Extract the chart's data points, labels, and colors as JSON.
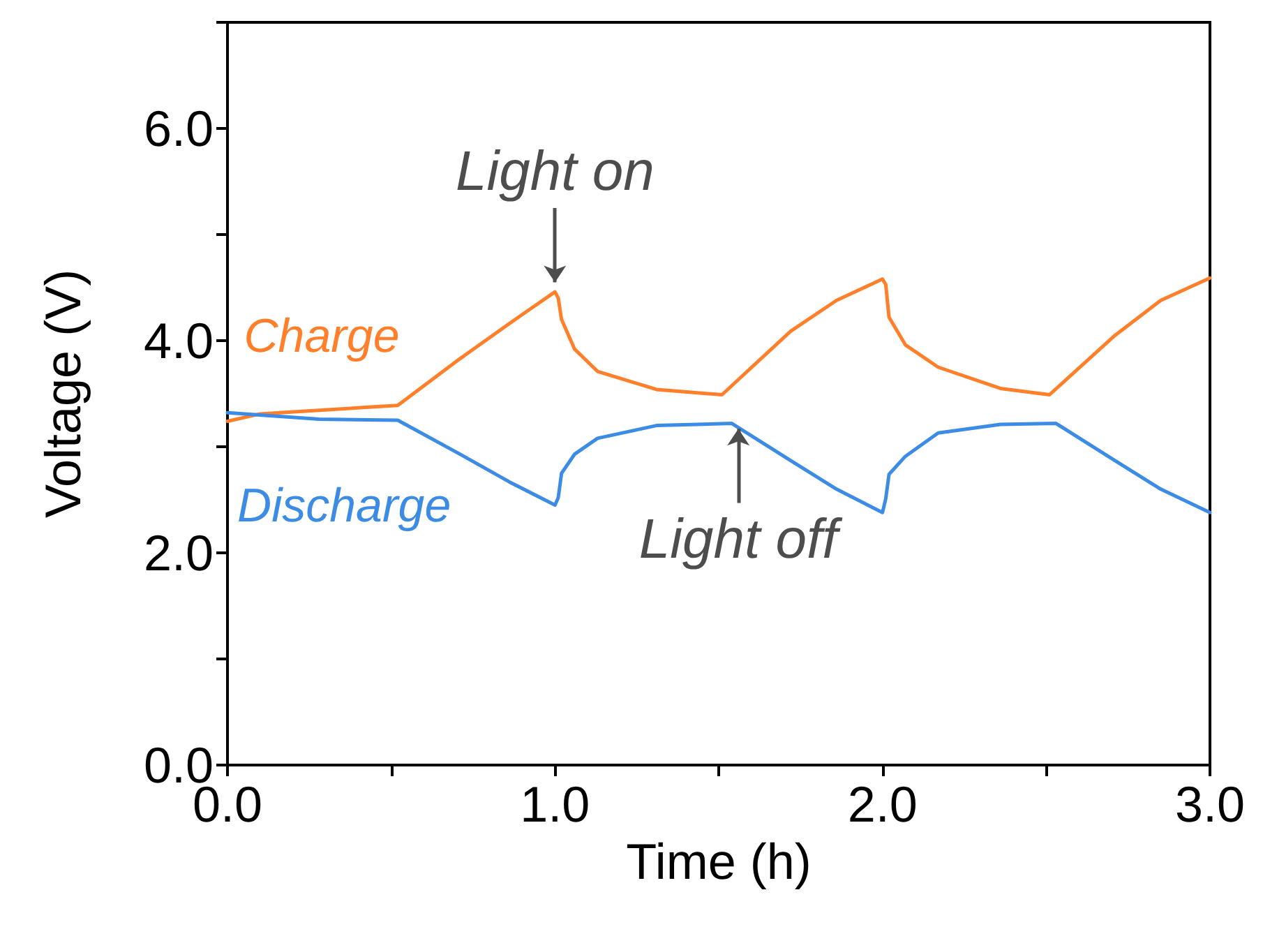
{
  "chart_data": {
    "type": "line",
    "xlabel": "Time (h)",
    "ylabel": "Voltage (V)",
    "xlim": [
      0,
      3
    ],
    "ylim": [
      0,
      7
    ],
    "xticks": [
      {
        "value": 0,
        "label": "0.0"
      },
      {
        "value": 0.5,
        "label": null
      },
      {
        "value": 1,
        "label": "1.0"
      },
      {
        "value": 1.5,
        "label": null
      },
      {
        "value": 2,
        "label": "2.0"
      },
      {
        "value": 2.5,
        "label": null
      },
      {
        "value": 3,
        "label": "3.0"
      }
    ],
    "yticks": [
      {
        "value": 0,
        "label": "0.0"
      },
      {
        "value": 1,
        "label": null
      },
      {
        "value": 2,
        "label": "2.0"
      },
      {
        "value": 3,
        "label": null
      },
      {
        "value": 4,
        "label": "4.0"
      },
      {
        "value": 5,
        "label": null
      },
      {
        "value": 6,
        "label": "6.0"
      },
      {
        "value": 7,
        "label": null
      }
    ],
    "grid": false,
    "legend": false,
    "marker": "none",
    "line_style": "solid",
    "series": [
      {
        "name": "Charge",
        "color": "#ff7f2a",
        "x": [
          0,
          0.1,
          0.52,
          0.71,
          0.86,
          1.0,
          1.01,
          1.02,
          1.06,
          1.13,
          1.31,
          1.51,
          1.72,
          1.86,
          2.0,
          2.01,
          2.02,
          2.07,
          2.17,
          2.36,
          2.51,
          2.71,
          2.85,
          3.0
        ],
        "values": [
          3.24,
          3.31,
          3.39,
          3.83,
          4.16,
          4.46,
          4.4,
          4.2,
          3.92,
          3.71,
          3.54,
          3.49,
          4.09,
          4.38,
          4.58,
          4.53,
          4.22,
          3.96,
          3.75,
          3.55,
          3.49,
          4.05,
          4.38,
          4.59
        ]
      },
      {
        "name": "Discharge",
        "color": "#3c8ce6",
        "x": [
          0,
          0.28,
          0.52,
          0.71,
          0.86,
          1.0,
          1.01,
          1.02,
          1.06,
          1.13,
          1.31,
          1.54,
          1.72,
          1.86,
          2.0,
          2.01,
          2.02,
          2.07,
          2.17,
          2.36,
          2.53,
          2.71,
          2.85,
          3.0
        ],
        "values": [
          3.32,
          3.26,
          3.25,
          2.93,
          2.67,
          2.45,
          2.52,
          2.75,
          2.93,
          3.08,
          3.2,
          3.22,
          2.87,
          2.6,
          2.38,
          2.51,
          2.74,
          2.91,
          3.13,
          3.21,
          3.22,
          2.87,
          2.6,
          2.38
        ]
      }
    ],
    "annotations": [
      {
        "text": "Light on",
        "x": 1.0,
        "y": 4.5
      },
      {
        "text": "Light off",
        "x": 1.56,
        "y": 3.22
      }
    ]
  }
}
